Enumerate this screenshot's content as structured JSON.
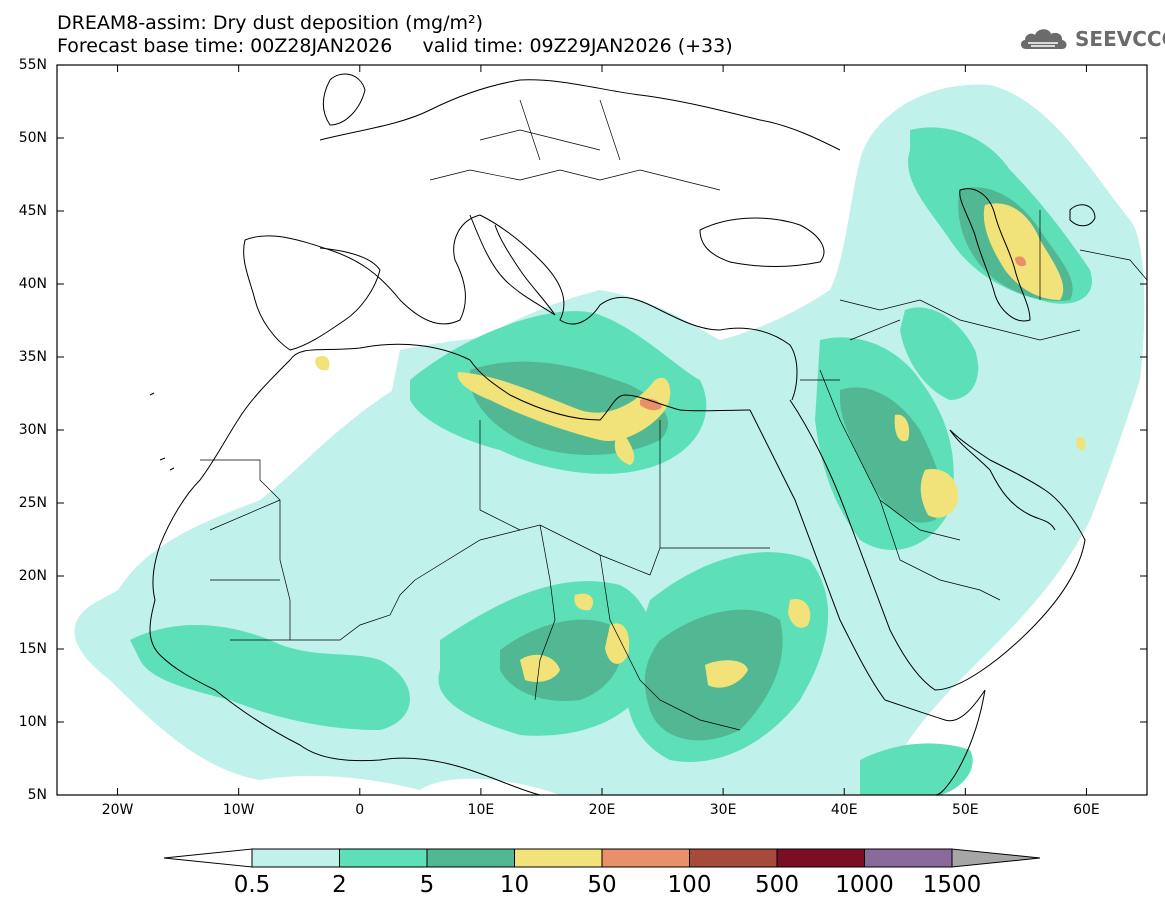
{
  "header": {
    "title_line1": "DREAM8-assim: Dry dust deposition (mg/m²)",
    "title_line2": "Forecast base time: 00Z28JAN2026     valid time: 09Z29JAN2026 (+33)",
    "logo_text": "SEEVCCC"
  },
  "map": {
    "projection": "lat-lon",
    "lon_range": [
      -25,
      65
    ],
    "lat_range": [
      5,
      55
    ],
    "lat_ticks": [
      "55N",
      "50N",
      "45N",
      "40N",
      "35N",
      "30N",
      "25N",
      "20N",
      "15N",
      "10N",
      "5N"
    ],
    "lon_ticks": [
      "20W",
      "10W",
      "0",
      "10E",
      "20E",
      "30E",
      "40E",
      "50E",
      "60E"
    ]
  },
  "colorbar": {
    "labels": [
      "0.5",
      "2",
      "5",
      "10",
      "50",
      "100",
      "500",
      "1000",
      "1500"
    ],
    "colors": [
      "#c0f1ea",
      "#5de0b8",
      "#52b893",
      "#f2e27a",
      "#e8906a",
      "#a64a3c",
      "#7a0f24",
      "#8a6a9c"
    ],
    "under_color": "#ffffff",
    "over_color": "#a6a6a6"
  },
  "dust_colors": {
    "level_0_5": "#c0f1ea",
    "level_2": "#5de0b8",
    "level_5": "#52b893",
    "level_10": "#f2e27a",
    "level_50": "#e8906a"
  }
}
